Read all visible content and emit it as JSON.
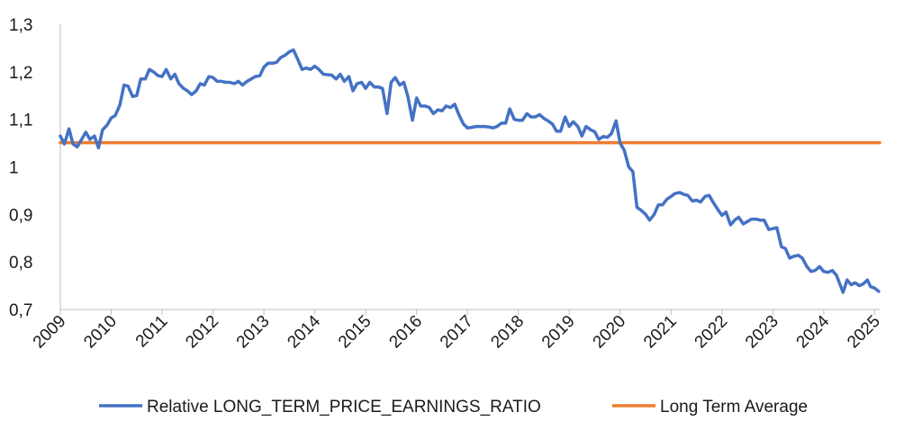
{
  "chart_data": {
    "type": "line",
    "title": "",
    "xlabel": "",
    "ylabel": "",
    "xlim": [
      2009,
      2025.1
    ],
    "ylim": [
      0.7,
      1.3
    ],
    "y_ticks": [
      {
        "value": 0.7,
        "label": "0,7"
      },
      {
        "value": 0.8,
        "label": "0,8"
      },
      {
        "value": 0.9,
        "label": "0,9"
      },
      {
        "value": 1.0,
        "label": "1"
      },
      {
        "value": 1.1,
        "label": "1,1"
      },
      {
        "value": 1.2,
        "label": "1,2"
      },
      {
        "value": 1.3,
        "label": "1,3"
      }
    ],
    "x_ticks": [
      {
        "value": 2009,
        "label": "2009"
      },
      {
        "value": 2010,
        "label": "2010"
      },
      {
        "value": 2011,
        "label": "2011"
      },
      {
        "value": 2012,
        "label": "2012"
      },
      {
        "value": 2013,
        "label": "2013"
      },
      {
        "value": 2014,
        "label": "2014"
      },
      {
        "value": 2015,
        "label": "2015"
      },
      {
        "value": 2016,
        "label": "2016"
      },
      {
        "value": 2017,
        "label": "2017"
      },
      {
        "value": 2018,
        "label": "2018"
      },
      {
        "value": 2019,
        "label": "2019"
      },
      {
        "value": 2020,
        "label": "2020"
      },
      {
        "value": 2021,
        "label": "2021"
      },
      {
        "value": 2022,
        "label": "2022"
      },
      {
        "value": 2023,
        "label": "2023"
      },
      {
        "value": 2024,
        "label": "2024"
      },
      {
        "value": 2025,
        "label": "2025"
      }
    ],
    "grid": false,
    "legend_position": "bottom",
    "series": [
      {
        "name": "Relative LONG_TERM_PRICE_EARNINGS_RATIO",
        "color": "#4472C4",
        "points": [
          [
            2009.0,
            1.065
          ],
          [
            2009.08,
            1.048
          ],
          [
            2009.17,
            1.08
          ],
          [
            2009.25,
            1.048
          ],
          [
            2009.33,
            1.042
          ],
          [
            2009.42,
            1.058
          ],
          [
            2009.5,
            1.073
          ],
          [
            2009.58,
            1.058
          ],
          [
            2009.67,
            1.065
          ],
          [
            2009.75,
            1.04
          ],
          [
            2009.83,
            1.078
          ],
          [
            2009.92,
            1.088
          ],
          [
            2010.0,
            1.103
          ],
          [
            2010.08,
            1.108
          ],
          [
            2010.17,
            1.13
          ],
          [
            2010.25,
            1.172
          ],
          [
            2010.33,
            1.17
          ],
          [
            2010.42,
            1.148
          ],
          [
            2010.5,
            1.15
          ],
          [
            2010.58,
            1.185
          ],
          [
            2010.67,
            1.185
          ],
          [
            2010.75,
            1.205
          ],
          [
            2010.83,
            1.2
          ],
          [
            2010.92,
            1.192
          ],
          [
            2011.0,
            1.19
          ],
          [
            2011.08,
            1.205
          ],
          [
            2011.17,
            1.185
          ],
          [
            2011.25,
            1.195
          ],
          [
            2011.33,
            1.175
          ],
          [
            2011.42,
            1.165
          ],
          [
            2011.5,
            1.16
          ],
          [
            2011.58,
            1.152
          ],
          [
            2011.67,
            1.16
          ],
          [
            2011.75,
            1.175
          ],
          [
            2011.83,
            1.172
          ],
          [
            2011.92,
            1.19
          ],
          [
            2012.0,
            1.188
          ],
          [
            2012.08,
            1.18
          ],
          [
            2012.17,
            1.18
          ],
          [
            2012.25,
            1.178
          ],
          [
            2012.33,
            1.178
          ],
          [
            2012.42,
            1.175
          ],
          [
            2012.5,
            1.18
          ],
          [
            2012.58,
            1.172
          ],
          [
            2012.67,
            1.18
          ],
          [
            2012.75,
            1.185
          ],
          [
            2012.83,
            1.19
          ],
          [
            2012.92,
            1.192
          ],
          [
            2013.0,
            1.21
          ],
          [
            2013.08,
            1.218
          ],
          [
            2013.17,
            1.218
          ],
          [
            2013.25,
            1.22
          ],
          [
            2013.33,
            1.23
          ],
          [
            2013.42,
            1.235
          ],
          [
            2013.5,
            1.242
          ],
          [
            2013.58,
            1.246
          ],
          [
            2013.67,
            1.225
          ],
          [
            2013.75,
            1.205
          ],
          [
            2013.83,
            1.208
          ],
          [
            2013.92,
            1.205
          ],
          [
            2014.0,
            1.212
          ],
          [
            2014.08,
            1.205
          ],
          [
            2014.17,
            1.195
          ],
          [
            2014.25,
            1.194
          ],
          [
            2014.33,
            1.193
          ],
          [
            2014.42,
            1.185
          ],
          [
            2014.5,
            1.195
          ],
          [
            2014.58,
            1.18
          ],
          [
            2014.67,
            1.19
          ],
          [
            2014.75,
            1.16
          ],
          [
            2014.83,
            1.175
          ],
          [
            2014.92,
            1.178
          ],
          [
            2015.0,
            1.165
          ],
          [
            2015.08,
            1.178
          ],
          [
            2015.17,
            1.168
          ],
          [
            2015.25,
            1.168
          ],
          [
            2015.33,
            1.165
          ],
          [
            2015.42,
            1.112
          ],
          [
            2015.5,
            1.178
          ],
          [
            2015.58,
            1.188
          ],
          [
            2015.67,
            1.172
          ],
          [
            2015.75,
            1.178
          ],
          [
            2015.83,
            1.148
          ],
          [
            2015.92,
            1.098
          ],
          [
            2016.0,
            1.145
          ],
          [
            2016.08,
            1.128
          ],
          [
            2016.17,
            1.128
          ],
          [
            2016.25,
            1.125
          ],
          [
            2016.33,
            1.112
          ],
          [
            2016.42,
            1.12
          ],
          [
            2016.5,
            1.118
          ],
          [
            2016.58,
            1.128
          ],
          [
            2016.67,
            1.125
          ],
          [
            2016.75,
            1.132
          ],
          [
            2016.83,
            1.11
          ],
          [
            2016.92,
            1.09
          ],
          [
            2017.0,
            1.082
          ],
          [
            2017.08,
            1.083
          ],
          [
            2017.17,
            1.085
          ],
          [
            2017.25,
            1.085
          ],
          [
            2017.33,
            1.085
          ],
          [
            2017.42,
            1.084
          ],
          [
            2017.5,
            1.082
          ],
          [
            2017.58,
            1.085
          ],
          [
            2017.67,
            1.092
          ],
          [
            2017.75,
            1.092
          ],
          [
            2017.83,
            1.122
          ],
          [
            2017.92,
            1.1
          ],
          [
            2018.0,
            1.098
          ],
          [
            2018.08,
            1.098
          ],
          [
            2018.17,
            1.112
          ],
          [
            2018.25,
            1.105
          ],
          [
            2018.33,
            1.105
          ],
          [
            2018.42,
            1.11
          ],
          [
            2018.5,
            1.102
          ],
          [
            2018.58,
            1.097
          ],
          [
            2018.67,
            1.09
          ],
          [
            2018.75,
            1.075
          ],
          [
            2018.83,
            1.075
          ],
          [
            2018.92,
            1.105
          ],
          [
            2019.0,
            1.085
          ],
          [
            2019.08,
            1.095
          ],
          [
            2019.17,
            1.085
          ],
          [
            2019.25,
            1.065
          ],
          [
            2019.33,
            1.085
          ],
          [
            2019.42,
            1.078
          ],
          [
            2019.5,
            1.074
          ],
          [
            2019.58,
            1.058
          ],
          [
            2019.67,
            1.064
          ],
          [
            2019.75,
            1.062
          ],
          [
            2019.83,
            1.07
          ],
          [
            2019.92,
            1.097
          ],
          [
            2020.0,
            1.05
          ],
          [
            2020.08,
            1.035
          ],
          [
            2020.17,
            1.0
          ],
          [
            2020.25,
            0.99
          ],
          [
            2020.33,
            0.915
          ],
          [
            2020.42,
            0.908
          ],
          [
            2020.5,
            0.9
          ],
          [
            2020.58,
            0.888
          ],
          [
            2020.67,
            0.9
          ],
          [
            2020.75,
            0.92
          ],
          [
            2020.83,
            0.92
          ],
          [
            2020.92,
            0.932
          ],
          [
            2021.0,
            0.938
          ],
          [
            2021.08,
            0.944
          ],
          [
            2021.17,
            0.946
          ],
          [
            2021.25,
            0.942
          ],
          [
            2021.33,
            0.94
          ],
          [
            2021.42,
            0.928
          ],
          [
            2021.5,
            0.93
          ],
          [
            2021.58,
            0.926
          ],
          [
            2021.67,
            0.938
          ],
          [
            2021.75,
            0.94
          ],
          [
            2021.83,
            0.925
          ],
          [
            2021.92,
            0.91
          ],
          [
            2022.0,
            0.898
          ],
          [
            2022.08,
            0.905
          ],
          [
            2022.17,
            0.878
          ],
          [
            2022.25,
            0.888
          ],
          [
            2022.33,
            0.894
          ],
          [
            2022.42,
            0.88
          ],
          [
            2022.5,
            0.885
          ],
          [
            2022.58,
            0.89
          ],
          [
            2022.67,
            0.89
          ],
          [
            2022.75,
            0.888
          ],
          [
            2022.83,
            0.888
          ],
          [
            2022.92,
            0.868
          ],
          [
            2023.0,
            0.87
          ],
          [
            2023.08,
            0.872
          ],
          [
            2023.17,
            0.832
          ],
          [
            2023.25,
            0.828
          ],
          [
            2023.33,
            0.808
          ],
          [
            2023.42,
            0.812
          ],
          [
            2023.5,
            0.814
          ],
          [
            2023.58,
            0.808
          ],
          [
            2023.67,
            0.79
          ],
          [
            2023.75,
            0.78
          ],
          [
            2023.83,
            0.782
          ],
          [
            2023.92,
            0.79
          ],
          [
            2024.0,
            0.78
          ],
          [
            2024.08,
            0.778
          ],
          [
            2024.17,
            0.782
          ],
          [
            2024.25,
            0.772
          ],
          [
            2024.33,
            0.75
          ],
          [
            2024.38,
            0.736
          ],
          [
            2024.46,
            0.762
          ],
          [
            2024.54,
            0.752
          ],
          [
            2024.62,
            0.756
          ],
          [
            2024.7,
            0.75
          ],
          [
            2024.78,
            0.754
          ],
          [
            2024.86,
            0.762
          ],
          [
            2024.92,
            0.748
          ],
          [
            2025.0,
            0.745
          ],
          [
            2025.08,
            0.738
          ]
        ]
      },
      {
        "name": "Long Term Average",
        "color": "#ED7D31",
        "points": [
          [
            2009.0,
            1.051
          ],
          [
            2025.1,
            1.051
          ]
        ]
      }
    ]
  }
}
